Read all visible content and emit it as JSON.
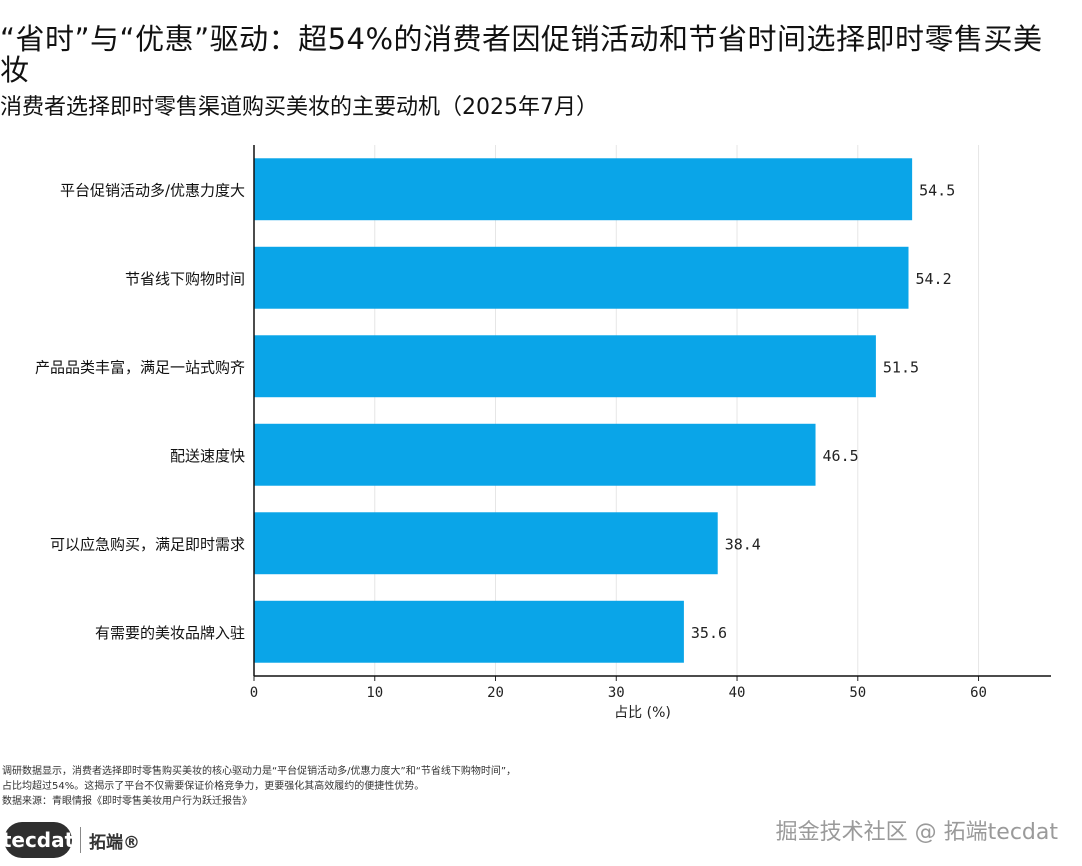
{
  "header": {
    "title": "“省时”与“优惠”驱动：超54%的消费者因促销活动和节省时间选择即时零售买美妆",
    "subtitle": "消费者选择即时零售渠道购买美妆的主要动机（2025年7月）"
  },
  "chart_data": {
    "type": "bar",
    "orientation": "horizontal",
    "categories": [
      "平台促销活动多/优惠力度大",
      "节省线下购物时间",
      "产品品类丰富，满足一站式购齐",
      "配送速度快",
      "可以应急购买，满足即时需求",
      "有需要的美妆品牌入驻"
    ],
    "values": [
      54.5,
      54.2,
      51.5,
      46.5,
      38.4,
      35.6
    ],
    "value_labels": [
      "54.5",
      "54.2",
      "51.5",
      "46.5",
      "38.4",
      "35.6"
    ],
    "xlabel": "占比 (%)",
    "xlim": [
      0,
      66
    ],
    "xticks": [
      0,
      10,
      20,
      30,
      40,
      50,
      60
    ],
    "grid": true,
    "bar_color": "#0aa5e8"
  },
  "footer": {
    "note_line1": "调研数据显示，消费者选择即时零售购买美妆的核心驱动力是“平台促销活动多/优惠力度大”和“节省线下购物时间”，",
    "note_line2": "占比均超过54%。这揭示了平台不仅需要保证价格竞争力，更要强化其高效履约的便捷性优势。",
    "source": "数据来源：青眼情报《即时零售美妆用户行为跃迁报告》",
    "logo_text": "tecdat",
    "logo_cn": "拓端®",
    "watermark": "掘金技术社区 @ 拓端tecdat"
  }
}
